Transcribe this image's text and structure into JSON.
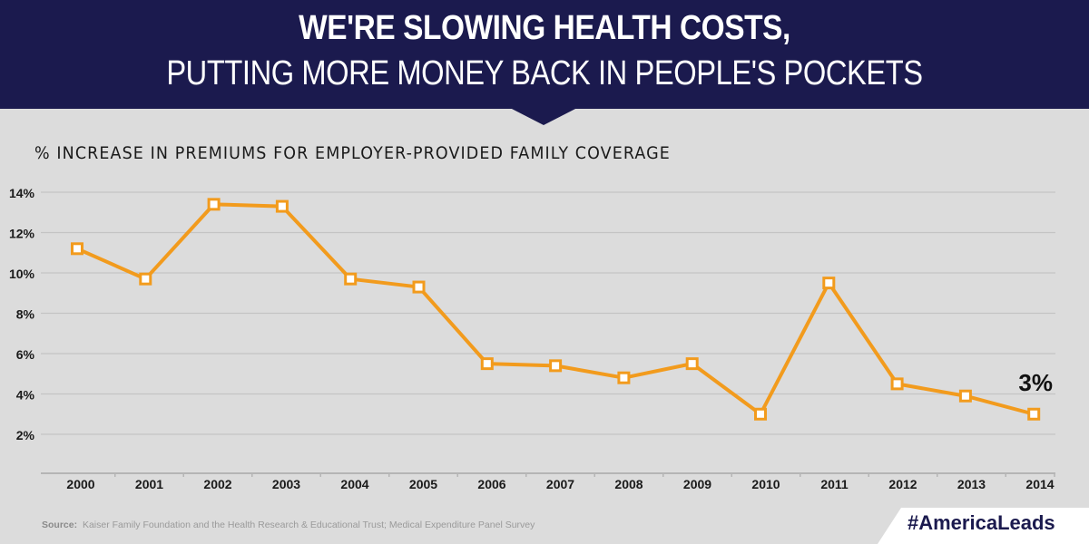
{
  "header": {
    "title_line1": "WE'RE SLOWING HEALTH COSTS,",
    "title_line2": "PUTTING MORE MONEY BACK IN PEOPLE'S POCKETS"
  },
  "colors": {
    "header_bg": "#1b1a4e",
    "background": "#dcdcdc",
    "line": "#f29b1d",
    "gridline": "#c4c4c4"
  },
  "chart_data": {
    "type": "line",
    "title": "% INCREASE IN PREMIUMS FOR EMPLOYER-PROVIDED FAMILY COVERAGE",
    "xlabel": "",
    "ylabel": "",
    "categories": [
      "2000",
      "2001",
      "2002",
      "2003",
      "2004",
      "2005",
      "2006",
      "2007",
      "2008",
      "2009",
      "2010",
      "2011",
      "2012",
      "2013",
      "2014"
    ],
    "series": [
      {
        "name": "% increase in premiums",
        "values": [
          11.2,
          9.7,
          13.4,
          13.3,
          9.7,
          9.3,
          5.5,
          5.4,
          4.8,
          5.5,
          3.0,
          9.5,
          4.5,
          3.9,
          3.0
        ]
      }
    ],
    "ylim": [
      0,
      14
    ],
    "yticks": [
      2,
      4,
      6,
      8,
      10,
      12,
      14
    ],
    "ytick_labels": [
      "2%",
      "4%",
      "6%",
      "8%",
      "10%",
      "12%",
      "14%"
    ],
    "grid": true,
    "annotation": {
      "label": "3%",
      "category": "2014"
    }
  },
  "footer": {
    "source_label": "Source:",
    "source_text": "Kaiser Family Foundation and the Health Research & Educational Trust; Medical Expenditure Panel Survey",
    "hashtag": "#AmericaLeads"
  }
}
